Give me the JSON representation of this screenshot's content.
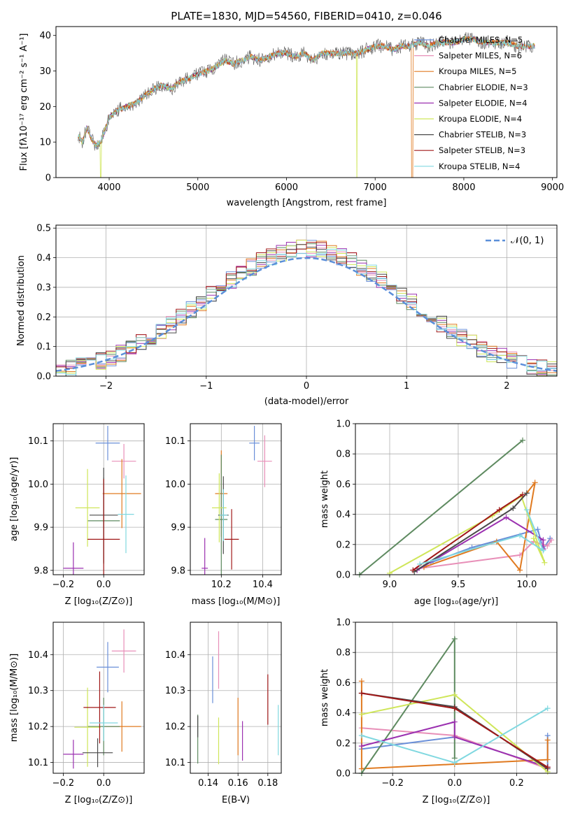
{
  "colors": [
    "#6a8fd8",
    "#e88fb8",
    "#e07a20",
    "#5e8a60",
    "#9b30b0",
    "#cfe65a",
    "#4a4a4a",
    "#a01818",
    "#80d8e0"
  ],
  "chart_data": [
    {
      "type": "line",
      "title": "PLATE=1830, MJD=54560, FIBERID=0410, z=0.046",
      "xlabel": "wavelength [Angstrom, rest frame]",
      "ylabel": "Flux [fλ10⁻¹⁷ erg cm⁻² s⁻¹ A⁻¹]",
      "xlim": [
        3400,
        9050
      ],
      "ylim": [
        0,
        42.5
      ],
      "xticks": [
        "4000",
        "5000",
        "6000",
        "7000",
        "8000",
        "9000"
      ],
      "yticks": [
        "0",
        "10",
        "20",
        "30",
        "40"
      ],
      "grid": false,
      "legend_position": "top-right",
      "series": [
        {
          "name": "Chabrier MILES, N_SSP=5"
        },
        {
          "name": "Salpeter MILES, N_SSP=6"
        },
        {
          "name": "Kroupa MILES, N_SSP=5"
        },
        {
          "name": "Chabrier ELODIE, N_SSP=3"
        },
        {
          "name": "Salpeter ELODIE, N_SSP=4"
        },
        {
          "name": "Kroupa ELODIE, N_SSP=4"
        },
        {
          "name": "Chabrier STELIB, N_SSP=3"
        },
        {
          "name": "Salpeter STELIB, N_SSP=3"
        },
        {
          "name": "Kroupa STELIB, N_SSP=4"
        }
      ],
      "x": [
        3650,
        3700,
        3750,
        3800,
        3850,
        3900,
        3950,
        4000,
        4100,
        4200,
        4300,
        4400,
        4500,
        4600,
        4700,
        4800,
        4900,
        5000,
        5100,
        5200,
        5300,
        5400,
        5500,
        5600,
        5700,
        5800,
        5900,
        6000,
        6100,
        6200,
        6300,
        6400,
        6500,
        6600,
        6700,
        6800,
        6900,
        7000,
        7100,
        7200,
        7300,
        7400,
        7500,
        7600,
        7700,
        7800,
        7900,
        8000,
        8100,
        8200,
        8300,
        8400,
        8500,
        8600,
        8700,
        8800
      ],
      "y": [
        12,
        10,
        14,
        11,
        9,
        10,
        13,
        17,
        19,
        20,
        21,
        23,
        25,
        26,
        25,
        27,
        28,
        29,
        30,
        31,
        33,
        32,
        33,
        34,
        33,
        34,
        35,
        35,
        34,
        35,
        33,
        35,
        35,
        35,
        35,
        35,
        36,
        37,
        37,
        36,
        37,
        37,
        38,
        37,
        38,
        38,
        38,
        39,
        39,
        38,
        38,
        38,
        38,
        37,
        37,
        37
      ]
    },
    {
      "type": "line",
      "xlabel": "(data-model)/error",
      "ylabel": "Normed distribution",
      "xlim": [
        -2.5,
        2.5
      ],
      "ylim": [
        0,
        0.51
      ],
      "xticks": [
        "−2",
        "−1",
        "0",
        "1",
        "2"
      ],
      "yticks": [
        "0.0",
        "0.1",
        "0.2",
        "0.3",
        "0.4",
        "0.5"
      ],
      "grid": true,
      "legend_position": "top-right",
      "legend": "𝒩(0, 1)"
    },
    {
      "type": "scatter",
      "xlabel": "Z [log₁₀(Z/Z⊙)]",
      "ylabel": "age  [log₁₀(age/yr)]",
      "xlim": [
        -0.25,
        0.2
      ],
      "ylim": [
        9.79,
        10.14
      ],
      "xticks": [
        "−0.2",
        "0.0"
      ],
      "yticks": [
        "9.8",
        "9.9",
        "10.0",
        "10.1"
      ],
      "grid": true,
      "points": [
        {
          "x": 0.02,
          "y": 10.095,
          "ex": 0.12,
          "ey": 0.04
        },
        {
          "x": 0.1,
          "y": 10.053,
          "ex": 0.12,
          "ey": 0.04
        },
        {
          "x": 0.09,
          "y": 9.978,
          "ex": 0.19,
          "ey": 0.08
        },
        {
          "x": 0.0,
          "y": 9.915,
          "ex": 0.16,
          "ey": 0.1
        },
        {
          "x": -0.15,
          "y": 9.805,
          "ex": 0.1,
          "ey": 0.06
        },
        {
          "x": -0.08,
          "y": 9.945,
          "ex": 0.12,
          "ey": 0.09
        },
        {
          "x": 0.0,
          "y": 9.928,
          "ex": 0.14,
          "ey": 0.11
        },
        {
          "x": 0.0,
          "y": 9.872,
          "ex": 0.16,
          "ey": 0.14
        },
        {
          "x": 0.11,
          "y": 9.93,
          "ex": 0.08,
          "ey": 0.09
        }
      ]
    },
    {
      "type": "scatter",
      "xlabel": "mass [log₁₀(M/M⊙)]",
      "xlim": [
        10.05,
        10.49
      ],
      "ylim": [
        9.79,
        10.14
      ],
      "xticks": [
        "10.2",
        "10.4"
      ],
      "yticks": [
        "9.8",
        "9.9",
        "10.0",
        "10.1"
      ],
      "grid": true,
      "points": [
        {
          "x": 10.36,
          "y": 10.095,
          "ex": 0.05,
          "ey": 0.04
        },
        {
          "x": 10.41,
          "y": 10.053,
          "ex": 0.07,
          "ey": 0.06
        },
        {
          "x": 10.2,
          "y": 9.978,
          "ex": 0.06,
          "ey": 0.1
        },
        {
          "x": 10.2,
          "y": 9.918,
          "ex": 0.06,
          "ey": 0.15
        },
        {
          "x": 10.12,
          "y": 9.805,
          "ex": 0.03,
          "ey": 0.07
        },
        {
          "x": 10.19,
          "y": 9.945,
          "ex": 0.07,
          "ey": 0.08
        },
        {
          "x": 10.21,
          "y": 9.928,
          "ex": 0.05,
          "ey": 0.09
        },
        {
          "x": 10.25,
          "y": 9.872,
          "ex": 0.07,
          "ey": 0.07
        },
        {
          "x": 10.21,
          "y": 9.928,
          "ex": 0.04,
          "ey": 0.06
        }
      ]
    },
    {
      "type": "line",
      "xlabel": "age  [log₁₀(age/yr)]",
      "ylabel": "mass weight",
      "xlim": [
        8.75,
        10.22
      ],
      "ylim": [
        0,
        1.0
      ],
      "xticks": [
        "9.0",
        "9.5",
        "10.0"
      ],
      "yticks": [
        "0.0",
        "0.2",
        "0.4",
        "0.6",
        "0.8",
        "1.0"
      ],
      "grid": true,
      "series": [
        {
          "x": [
            9.3,
            9.6,
            10.08,
            10.12,
            10.17
          ],
          "y": [
            0.08,
            0.18,
            0.3,
            0.17,
            0.24
          ]
        },
        {
          "x": [
            9.2,
            9.95,
            10.05,
            10.15,
            10.18
          ],
          "y": [
            0.04,
            0.13,
            0.22,
            0.19,
            0.23
          ]
        },
        {
          "x": [
            9.25,
            9.78,
            9.95,
            10.06,
            10.0
          ],
          "y": [
            0.05,
            0.22,
            0.03,
            0.61,
            0.54
          ]
        },
        {
          "x": [
            8.78,
            9.97
          ],
          "y": [
            0.0,
            0.89
          ]
        },
        {
          "x": [
            9.2,
            9.85,
            10.12,
            10.12
          ],
          "y": [
            0.03,
            0.38,
            0.23,
            0.17
          ]
        },
        {
          "x": [
            9.0,
            9.75,
            9.96,
            10.13,
            10.05
          ],
          "y": [
            0.01,
            0.39,
            0.52,
            0.08,
            0.24
          ]
        },
        {
          "x": [
            9.18,
            9.9,
            10.0
          ],
          "y": [
            0.02,
            0.44,
            0.54
          ]
        },
        {
          "x": [
            9.17,
            9.8,
            9.97
          ],
          "y": [
            0.03,
            0.43,
            0.53
          ]
        },
        {
          "x": [
            9.22,
            9.95,
            10.12,
            10.0
          ],
          "y": [
            0.07,
            0.26,
            0.16,
            0.43
          ]
        }
      ]
    },
    {
      "type": "scatter",
      "xlabel": "Z [log₁₀(Z/Z⊙)]",
      "ylabel": "mass [log₁₀(M/M⊙)]",
      "xlim": [
        -0.25,
        0.2
      ],
      "ylim": [
        10.07,
        10.49
      ],
      "xticks": [
        "−0.2",
        "0.0"
      ],
      "yticks": [
        "10.1",
        "10.2",
        "10.3",
        "10.4"
      ],
      "grid": true,
      "points": [
        {
          "x": 0.02,
          "y": 10.365,
          "ex": 0.11,
          "ey": 0.07
        },
        {
          "x": 0.1,
          "y": 10.41,
          "ex": 0.12,
          "ey": 0.06
        },
        {
          "x": 0.09,
          "y": 10.2,
          "ex": 0.19,
          "ey": 0.07
        },
        {
          "x": 0.0,
          "y": 10.2,
          "ex": 0.16,
          "ey": 0.08
        },
        {
          "x": -0.15,
          "y": 10.123,
          "ex": 0.1,
          "ey": 0.04
        },
        {
          "x": -0.08,
          "y": 10.198,
          "ex": 0.13,
          "ey": 0.11
        },
        {
          "x": -0.03,
          "y": 10.127,
          "ex": 0.15,
          "ey": 0.04
        },
        {
          "x": -0.02,
          "y": 10.253,
          "ex": 0.16,
          "ey": 0.1
        },
        {
          "x": 0.0,
          "y": 10.21,
          "ex": 0.14,
          "ey": 0.05
        }
      ]
    },
    {
      "type": "scatter",
      "xlabel": "E(B-V)",
      "xlim": [
        0.128,
        0.189
      ],
      "ylim": [
        10.07,
        10.49
      ],
      "xticks": [
        "0.14",
        "0.16",
        "0.18"
      ],
      "yticks": [
        "10.1",
        "10.2",
        "10.3",
        "10.4"
      ],
      "grid": true,
      "points": [
        {
          "x": 0.143,
          "y": 10.33,
          "ex": 0,
          "ey": 0.065
        },
        {
          "x": 0.147,
          "y": 10.385,
          "ex": 0,
          "ey": 0.08
        },
        {
          "x": 0.16,
          "y": 10.2,
          "ex": 0,
          "ey": 0.08
        },
        {
          "x": 0.133,
          "y": 10.165,
          "ex": 0,
          "ey": 0.068
        },
        {
          "x": 0.163,
          "y": 10.16,
          "ex": 0,
          "ey": 0.055
        },
        {
          "x": 0.147,
          "y": 10.16,
          "ex": 0,
          "ey": 0.065
        },
        {
          "x": 0.133,
          "y": 10.2,
          "ex": 0,
          "ey": 0.03
        },
        {
          "x": 0.18,
          "y": 10.275,
          "ex": 0,
          "ey": 0.07
        },
        {
          "x": 0.187,
          "y": 10.19,
          "ex": 0,
          "ey": 0.07
        }
      ]
    },
    {
      "type": "line",
      "xlabel": "Z [log₁₀(Z/Z⊙)]",
      "ylabel": "mass weight",
      "xlim": [
        -0.32,
        0.33
      ],
      "ylim": [
        0,
        1.0
      ],
      "xticks": [
        "−0.2",
        "0.0",
        "0.2"
      ],
      "yticks": [
        "0.0",
        "0.2",
        "0.4",
        "0.6",
        "0.8",
        "1.0"
      ],
      "grid": true,
      "series": [
        {
          "x": [
            -0.3,
            0.0,
            0.3,
            0.3
          ],
          "y": [
            0.16,
            0.24,
            0.04,
            0.25
          ]
        },
        {
          "x": [
            -0.3,
            0.0,
            0.3
          ],
          "y": [
            0.3,
            0.25,
            0.03
          ]
        },
        {
          "x": [
            -0.3,
            -0.3,
            0.0,
            0.3,
            0.3
          ],
          "y": [
            0.61,
            0.03,
            0.06,
            0.09,
            0.22
          ]
        },
        {
          "x": [
            -0.3,
            0.0,
            0.0
          ],
          "y": [
            0.0,
            0.89,
            0.1
          ]
        },
        {
          "x": [
            -0.3,
            0.0,
            0.0,
            0.3
          ],
          "y": [
            0.18,
            0.34,
            0.24,
            0.04
          ]
        },
        {
          "x": [
            -0.3,
            0.0,
            0.3
          ],
          "y": [
            0.39,
            0.52,
            0.01
          ]
        },
        {
          "x": [
            -0.3,
            0.0,
            0.3
          ],
          "y": [
            0.53,
            0.44,
            0.03
          ]
        },
        {
          "x": [
            -0.3,
            0.0,
            0.3
          ],
          "y": [
            0.53,
            0.43,
            0.04
          ]
        },
        {
          "x": [
            -0.3,
            0.0,
            0.3
          ],
          "y": [
            0.25,
            0.07,
            0.43
          ]
        }
      ]
    }
  ]
}
